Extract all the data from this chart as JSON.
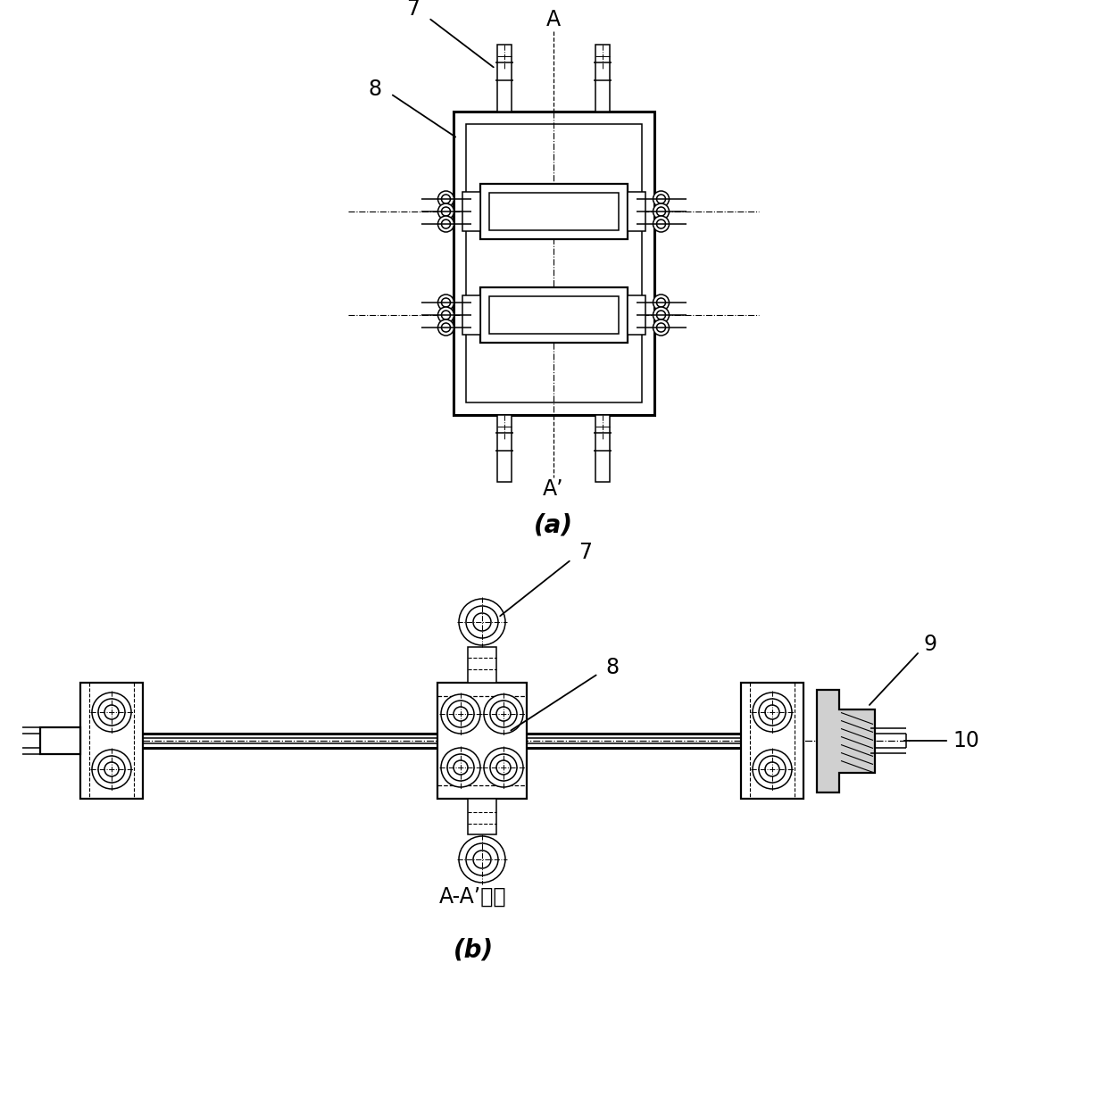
{
  "bg_color": "#ffffff",
  "fig_width": 12.4,
  "fig_height": 12.27,
  "label_a_top": "A",
  "label_a_bottom": "A’",
  "label_a": "(a)",
  "label_b": "(b)",
  "label_aa_section": "A-A’剑面",
  "part7": "7",
  "part8": "8",
  "part9": "9",
  "part10": "10"
}
